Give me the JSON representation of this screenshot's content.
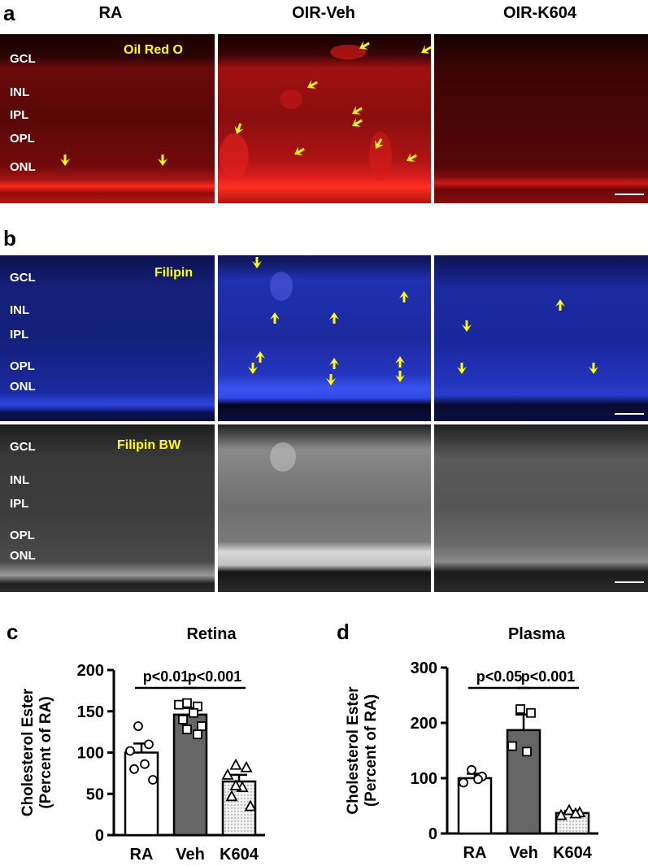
{
  "panels": {
    "a": "a",
    "b": "b",
    "c": "c",
    "d": "d"
  },
  "column_titles": [
    "RA",
    "OIR-Veh",
    "OIR-K604"
  ],
  "stains": {
    "oil_red_o": "Oil Red O",
    "filipin": "Filipin",
    "filipin_bw": "Filipin BW"
  },
  "layers_a": [
    "GCL",
    "INL",
    "IPL",
    "OPL",
    "ONL"
  ],
  "layers_b": [
    "GCL",
    "INL",
    "IPL",
    "OPL",
    "ONL"
  ],
  "layers_bw": [
    "GCL",
    "INL",
    "IPL",
    "OPL",
    "ONL"
  ],
  "colors": {
    "oil_red": "#c41010",
    "filipin_blue": "#1a2aa8",
    "arrow": "#ffff00",
    "bar_ra": "#ffffff",
    "bar_veh": "#666666",
    "bar_k604": "#e8e8e8"
  },
  "chart_data": [
    {
      "type": "bar",
      "title": "Retina",
      "ylabel": "Cholesterol Ester\n(Percent of RA)",
      "categories": [
        "RA",
        "Veh",
        "K604"
      ],
      "values": [
        100,
        146,
        65
      ],
      "sem": [
        11,
        8,
        8
      ],
      "ylim": [
        0,
        200
      ],
      "yticks": [
        0,
        50,
        100,
        150,
        200
      ],
      "points": [
        [
          132,
          110,
          102,
          86,
          80,
          67
        ],
        [
          160,
          156,
          158,
          148,
          140,
          132,
          128,
          122
        ],
        [
          85,
          82,
          73,
          58,
          47,
          35,
          60
        ]
      ],
      "markers": [
        "circle",
        "square",
        "triangle"
      ],
      "annotations": [
        {
          "label": "p<0.01",
          "from": 0,
          "to": 1
        },
        {
          "label": "p<0.001",
          "from": 1,
          "to": 2
        }
      ]
    },
    {
      "type": "bar",
      "title": "Plasma",
      "ylabel": "Cholesterol Ester\n(Percent of RA)",
      "categories": [
        "RA",
        "Veh",
        "K604"
      ],
      "values": [
        100,
        187,
        37
      ],
      "sem": [
        8,
        28,
        4
      ],
      "ylim": [
        0,
        300
      ],
      "yticks": [
        0,
        100,
        200,
        300
      ],
      "points": [
        [
          115,
          103,
          92,
          98
        ],
        [
          225,
          218,
          158,
          148
        ],
        [
          42,
          38,
          33,
          36
        ]
      ],
      "markers": [
        "circle",
        "square",
        "triangle"
      ],
      "annotations": [
        {
          "label": "p<0.05",
          "from": 0,
          "to": 1
        },
        {
          "label": "p<0.001",
          "from": 1,
          "to": 2
        }
      ]
    }
  ]
}
